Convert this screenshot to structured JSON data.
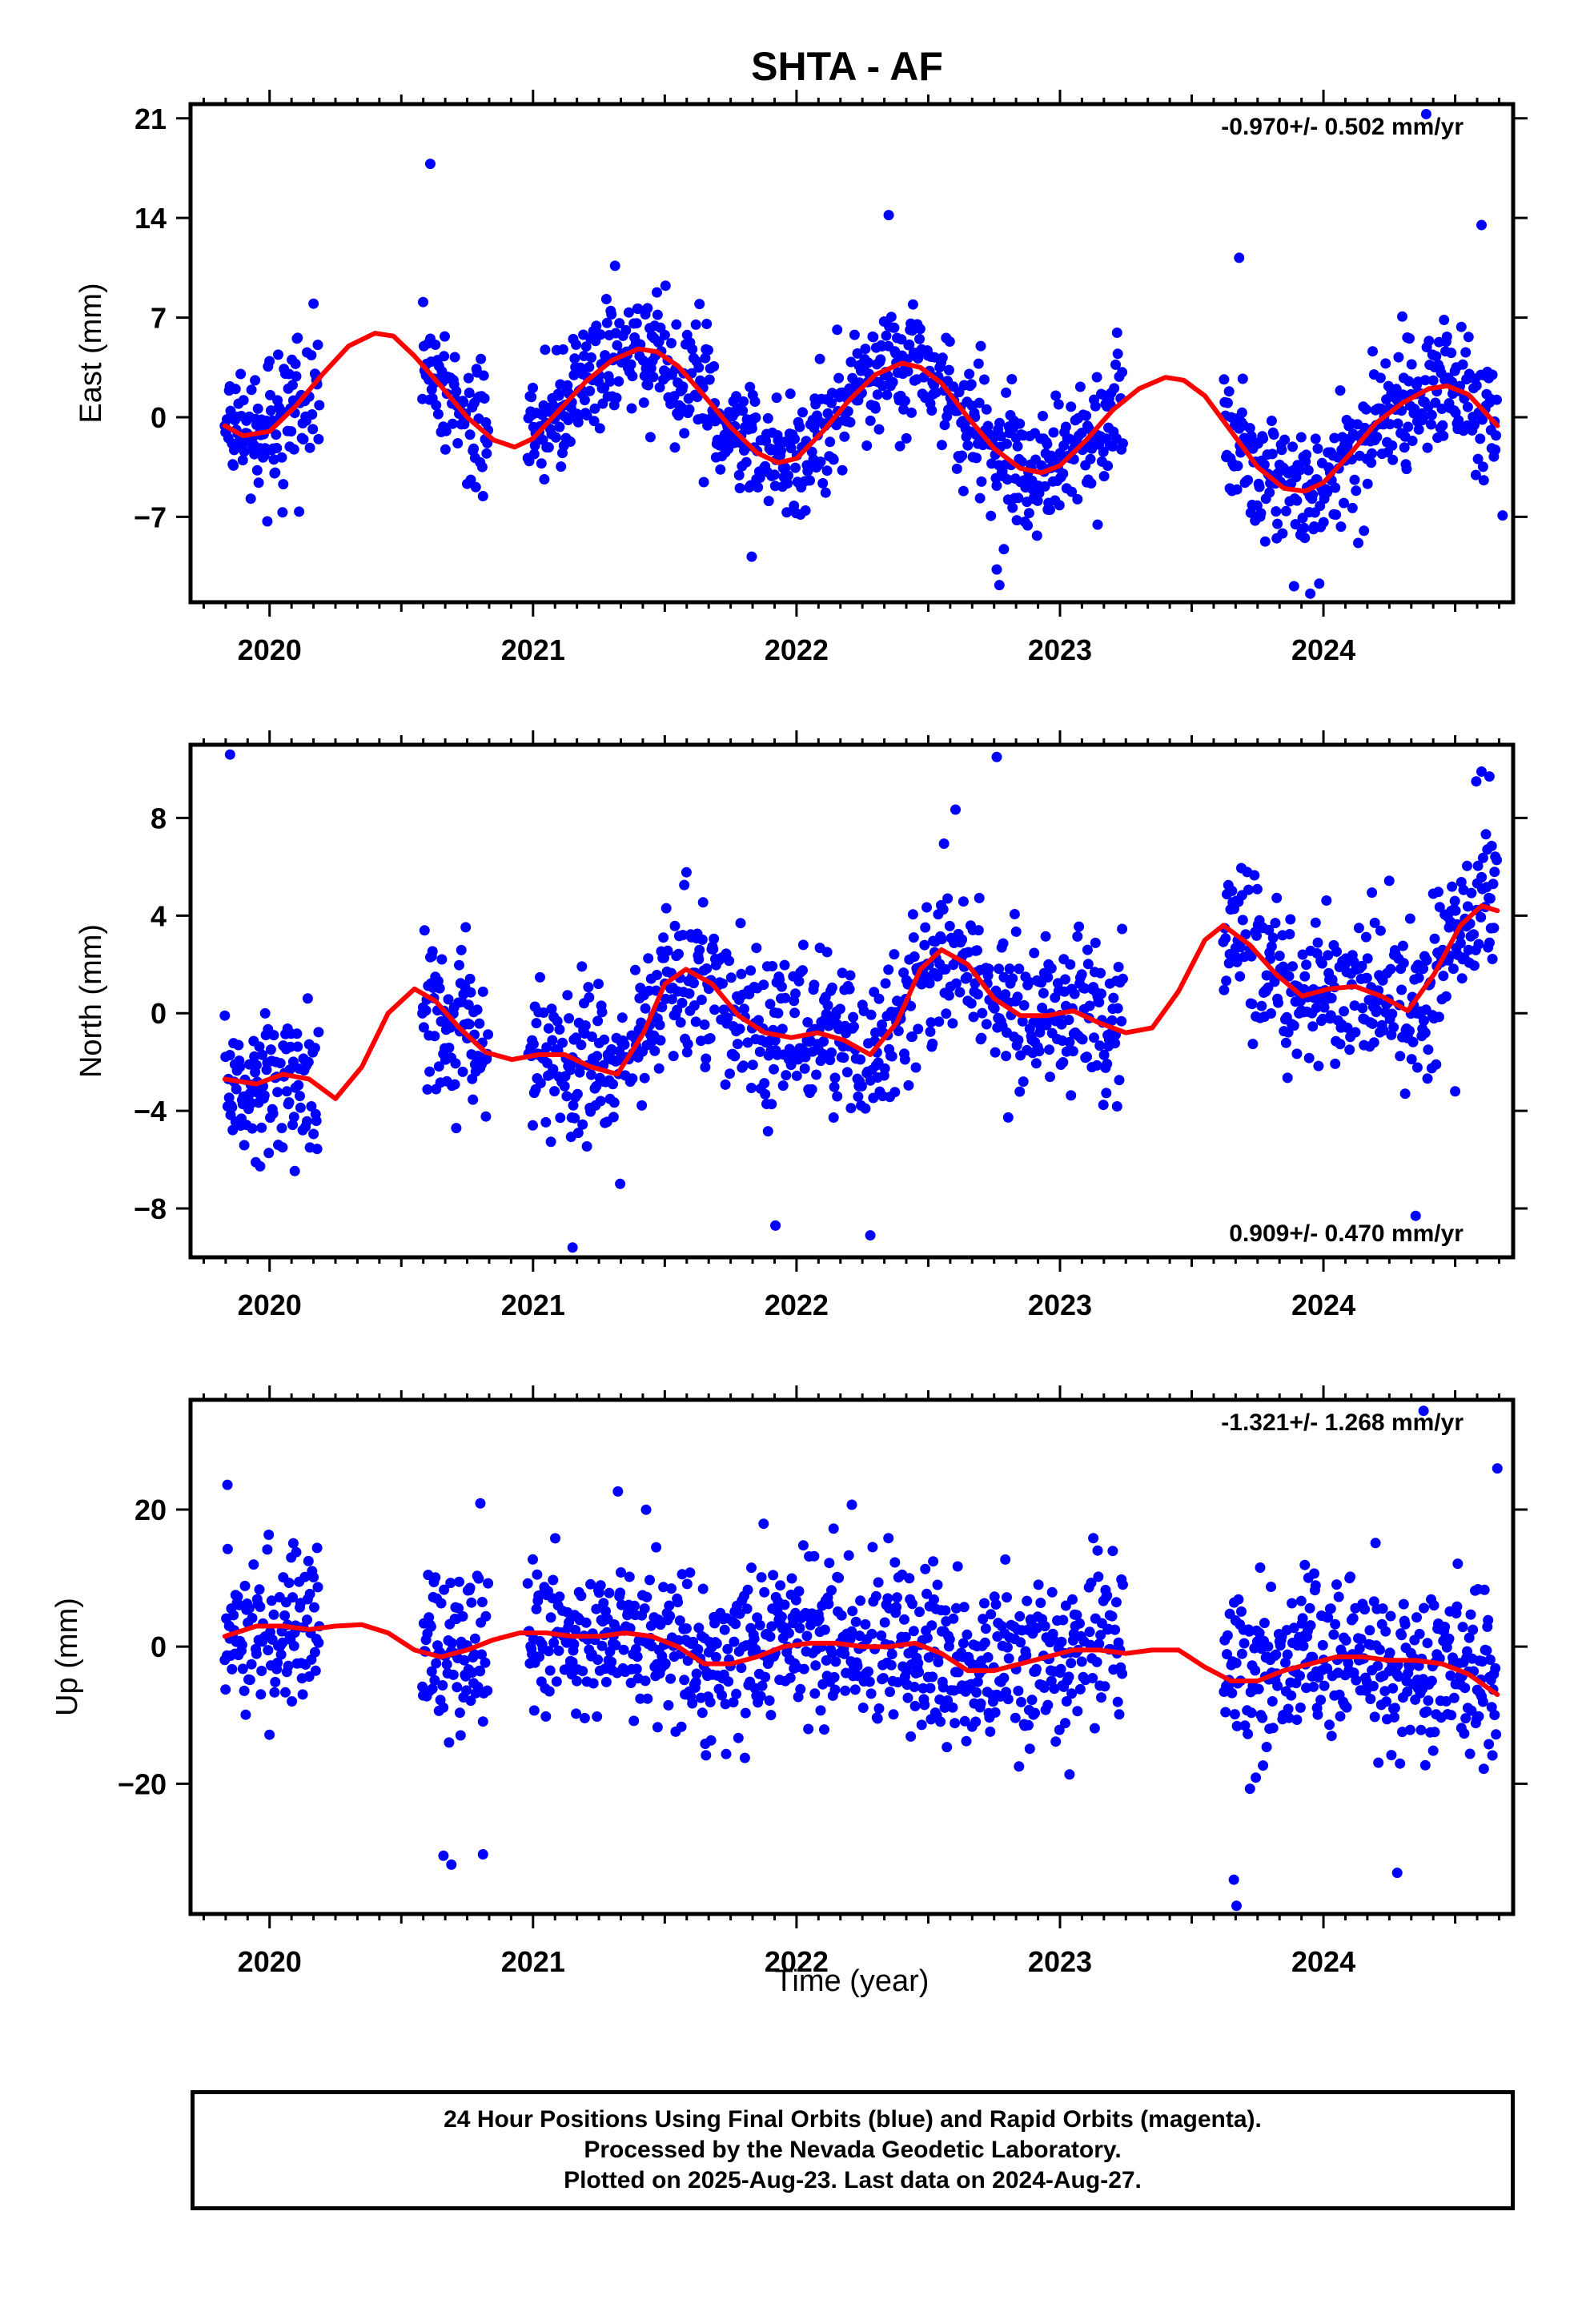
{
  "title": "SHTA - AF",
  "xlabel": "Time (year)",
  "colors": {
    "final_points": "#0000ff",
    "fit_curve": "#ff0000",
    "frame": "#000000"
  },
  "footer": {
    "lines": [
      "24 Hour Positions Using Final Orbits (blue) and Rapid Orbits (magenta).",
      "Processed by the Nevada Geodetic Laboratory.",
      "Plotted on 2025-Aug-23. Last data on 2024-Aug-27."
    ]
  },
  "chart_data": [
    {
      "type": "scatter",
      "component": "East",
      "ylabel": "East (mm)",
      "rate_label": "-0.970+/- 0.502 mm/yr",
      "rate_position": "top-right",
      "xlim": [
        2019.7,
        2024.72
      ],
      "ylim": [
        -13,
        22
      ],
      "yticks": [
        21,
        14,
        7,
        0,
        -7
      ],
      "xticks": [
        2020,
        2021,
        2022,
        2023,
        2024
      ],
      "data_segments": [
        [
          2019.83,
          2020.19
        ],
        [
          2020.58,
          2020.83
        ],
        [
          2020.98,
          2023.24
        ],
        [
          2023.62,
          2024.66
        ]
      ],
      "scatter_sd": 2.2,
      "fit_curve": {
        "x": [
          2019.83,
          2019.9,
          2020.0,
          2020.1,
          2020.2,
          2020.3,
          2020.4,
          2020.47,
          2020.55,
          2020.65,
          2020.75,
          2020.85,
          2020.93,
          2021.0,
          2021.1,
          2021.2,
          2021.3,
          2021.4,
          2021.47,
          2021.55,
          2021.65,
          2021.75,
          2021.85,
          2021.93,
          2022.0,
          2022.1,
          2022.2,
          2022.3,
          2022.4,
          2022.47,
          2022.55,
          2022.65,
          2022.75,
          2022.85,
          2022.93,
          2023.0,
          2023.1,
          2023.2,
          2023.3,
          2023.4,
          2023.47,
          2023.55,
          2023.65,
          2023.75,
          2023.85,
          2023.93,
          2024.0,
          2024.1,
          2024.2,
          2024.3,
          2024.4,
          2024.47,
          2024.55,
          2024.66
        ],
        "y": [
          -0.6,
          -1.3,
          -1.0,
          0.8,
          3.0,
          5.0,
          5.9,
          5.7,
          4.3,
          2.2,
          0.0,
          -1.6,
          -2.1,
          -1.5,
          0.5,
          2.5,
          4.0,
          4.8,
          4.6,
          3.6,
          1.5,
          -0.7,
          -2.5,
          -3.2,
          -2.9,
          -1.0,
          1.2,
          3.0,
          3.8,
          3.5,
          2.4,
          0.0,
          -2.2,
          -3.6,
          -3.9,
          -3.4,
          -1.6,
          0.5,
          2.0,
          2.8,
          2.6,
          1.5,
          -1.0,
          -3.5,
          -5.0,
          -5.2,
          -4.6,
          -2.6,
          -0.4,
          1.0,
          2.0,
          2.2,
          1.6,
          -0.6
        ]
      },
      "outliers": [
        {
          "x": 2020.61,
          "y": 17.8
        },
        {
          "x": 2022.35,
          "y": 14.2
        },
        {
          "x": 2022.76,
          "y": -10.7
        },
        {
          "x": 2022.77,
          "y": -11.8
        },
        {
          "x": 2024.39,
          "y": 21.3
        },
        {
          "x": 2023.95,
          "y": -12.4
        },
        {
          "x": 2024.6,
          "y": 13.5
        },
        {
          "x": 2024.68,
          "y": -6.9
        },
        {
          "x": 2021.83,
          "y": -9.8
        },
        {
          "x": 2023.68,
          "y": 11.2
        }
      ]
    },
    {
      "type": "scatter",
      "component": "North",
      "ylabel": "North (mm)",
      "rate_label": "0.909+/- 0.470 mm/yr",
      "rate_position": "bottom-right",
      "xlim": [
        2019.7,
        2024.72
      ],
      "ylim": [
        -10,
        11
      ],
      "yticks": [
        8,
        4,
        0,
        -4,
        -8
      ],
      "xticks": [
        2020,
        2021,
        2022,
        2023,
        2024
      ],
      "data_segments": [
        [
          2019.83,
          2020.19
        ],
        [
          2020.58,
          2020.83
        ],
        [
          2020.98,
          2023.24
        ],
        [
          2023.62,
          2024.66
        ]
      ],
      "scatter_sd": 1.6,
      "fit_curve": {
        "x": [
          2019.83,
          2019.95,
          2020.05,
          2020.15,
          2020.25,
          2020.35,
          2020.45,
          2020.55,
          2020.63,
          2020.72,
          2020.82,
          2020.92,
          2021.02,
          2021.12,
          2021.22,
          2021.32,
          2021.42,
          2021.5,
          2021.58,
          2021.68,
          2021.78,
          2021.88,
          2021.98,
          2022.08,
          2022.18,
          2022.28,
          2022.38,
          2022.47,
          2022.55,
          2022.65,
          2022.75,
          2022.85,
          2022.95,
          2023.05,
          2023.15,
          2023.25,
          2023.35,
          2023.45,
          2023.55,
          2023.62,
          2023.72,
          2023.82,
          2023.92,
          2024.02,
          2024.12,
          2024.22,
          2024.32,
          2024.42,
          2024.52,
          2024.6,
          2024.66
        ],
        "y": [
          -2.7,
          -2.9,
          -2.5,
          -2.7,
          -3.5,
          -2.2,
          0.0,
          1.0,
          0.5,
          -0.6,
          -1.6,
          -1.9,
          -1.7,
          -1.7,
          -2.2,
          -2.5,
          -0.8,
          1.2,
          1.8,
          1.2,
          -0.1,
          -0.8,
          -1.0,
          -0.8,
          -1.1,
          -1.7,
          -0.4,
          1.8,
          2.6,
          2.0,
          0.6,
          -0.1,
          -0.1,
          0.1,
          -0.4,
          -0.8,
          -0.6,
          0.9,
          3.0,
          3.6,
          2.8,
          1.6,
          0.7,
          1.0,
          1.1,
          0.7,
          0.1,
          1.6,
          3.6,
          4.4,
          4.2
        ]
      },
      "outliers": [
        {
          "x": 2019.85,
          "y": 10.6
        },
        {
          "x": 2022.76,
          "y": 10.5
        },
        {
          "x": 2021.15,
          "y": -9.6
        },
        {
          "x": 2021.92,
          "y": -8.7
        },
        {
          "x": 2022.28,
          "y": -9.1
        },
        {
          "x": 2024.6,
          "y": 9.9
        },
        {
          "x": 2024.63,
          "y": 9.7
        },
        {
          "x": 2024.58,
          "y": 9.5
        },
        {
          "x": 2024.35,
          "y": -8.3
        },
        {
          "x": 2024.5,
          "y": -3.2
        }
      ]
    },
    {
      "type": "scatter",
      "component": "Up",
      "ylabel": "Up (mm)",
      "rate_label": "-1.321+/- 1.268 mm/yr",
      "rate_position": "top-right",
      "xlim": [
        2019.7,
        2024.72
      ],
      "ylim": [
        -39,
        36
      ],
      "yticks": [
        20,
        0,
        -20
      ],
      "xticks": [
        2020,
        2021,
        2022,
        2023,
        2024
      ],
      "xlabel": "Time (year)",
      "data_segments": [
        [
          2019.83,
          2020.19
        ],
        [
          2020.58,
          2020.83
        ],
        [
          2020.98,
          2023.24
        ],
        [
          2023.62,
          2024.66
        ]
      ],
      "scatter_sd": 6.0,
      "fit_curve": {
        "x": [
          2019.83,
          2019.95,
          2020.05,
          2020.15,
          2020.25,
          2020.35,
          2020.45,
          2020.55,
          2020.65,
          2020.75,
          2020.85,
          2020.95,
          2021.05,
          2021.15,
          2021.25,
          2021.35,
          2021.45,
          2021.55,
          2021.65,
          2021.75,
          2021.85,
          2021.95,
          2022.05,
          2022.15,
          2022.25,
          2022.35,
          2022.45,
          2022.55,
          2022.65,
          2022.75,
          2022.85,
          2022.95,
          2023.05,
          2023.15,
          2023.25,
          2023.35,
          2023.45,
          2023.55,
          2023.65,
          2023.75,
          2023.85,
          2023.95,
          2024.05,
          2024.15,
          2024.25,
          2024.35,
          2024.45,
          2024.55,
          2024.66
        ],
        "y": [
          1.5,
          3.0,
          3.0,
          2.5,
          3.0,
          3.2,
          2.0,
          -0.5,
          -1.5,
          -0.5,
          1.0,
          2.0,
          2.0,
          1.5,
          1.5,
          2.0,
          1.5,
          0.0,
          -2.5,
          -2.5,
          -1.5,
          0.0,
          0.5,
          0.5,
          0.0,
          0.0,
          0.5,
          -1.0,
          -3.5,
          -3.5,
          -2.5,
          -1.5,
          -0.5,
          -0.5,
          -1.0,
          -0.5,
          -0.5,
          -3.0,
          -5.0,
          -5.0,
          -3.5,
          -2.5,
          -1.5,
          -1.5,
          -2.0,
          -2.0,
          -2.5,
          -4.0,
          -7.0
        ]
      },
      "outliers": [
        {
          "x": 2019.84,
          "y": 23.6
        },
        {
          "x": 2024.38,
          "y": 34.4
        },
        {
          "x": 2024.66,
          "y": 26.0
        },
        {
          "x": 2023.67,
          "y": -37.8
        },
        {
          "x": 2023.66,
          "y": -34.0
        },
        {
          "x": 2020.69,
          "y": -31.8
        },
        {
          "x": 2020.66,
          "y": -30.5
        },
        {
          "x": 2020.81,
          "y": -30.3
        },
        {
          "x": 2022.21,
          "y": 20.7
        },
        {
          "x": 2020.8,
          "y": 20.9
        },
        {
          "x": 2024.28,
          "y": -33.0
        }
      ]
    }
  ]
}
